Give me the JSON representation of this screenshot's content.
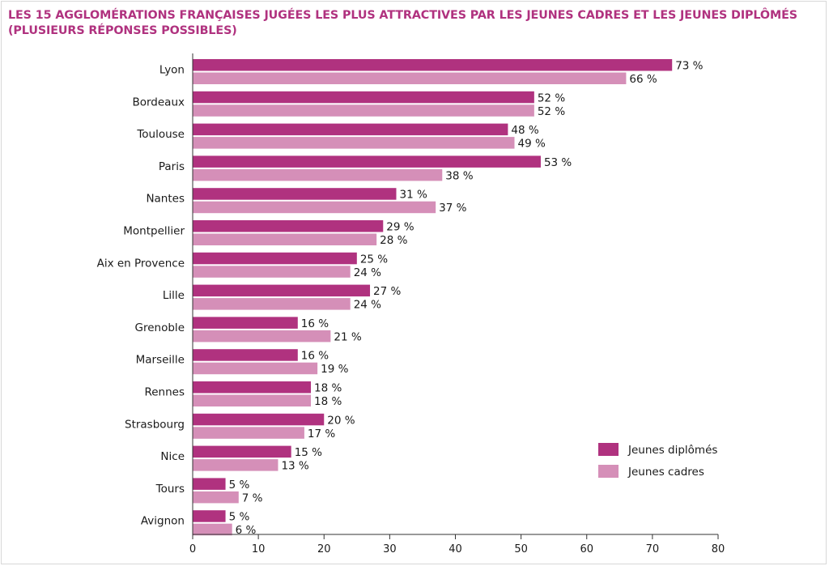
{
  "title_line1": "LES 15 AGGLOMÉRATIONS FRANÇAISES JUGÉES LES PLUS ATTRACTIVES PAR LES JEUNES CADRES ET LES JEUNES DIPLÔMÉS",
  "title_line2": "(PLUSIEURS RÉPONSES POSSIBLES)",
  "colors": {
    "diplomes": "#b0327f",
    "cadres": "#d58fb8",
    "axis": "#333333"
  },
  "chart_data": {
    "type": "bar",
    "orientation": "horizontal",
    "categories": [
      "Lyon",
      "Bordeaux",
      "Toulouse",
      "Paris",
      "Nantes",
      "Montpellier",
      "Aix en Provence",
      "Lille",
      "Grenoble",
      "Marseille",
      "Rennes",
      "Strasbourg",
      "Nice",
      "Tours",
      "Avignon"
    ],
    "series": [
      {
        "name": "Jeunes diplômés",
        "values": [
          73,
          52,
          48,
          53,
          31,
          29,
          25,
          27,
          16,
          16,
          18,
          20,
          15,
          5,
          5
        ]
      },
      {
        "name": "Jeunes cadres",
        "values": [
          66,
          52,
          49,
          38,
          37,
          28,
          24,
          24,
          21,
          19,
          18,
          17,
          13,
          7,
          6
        ]
      }
    ],
    "value_suffix": " %",
    "xlim": [
      0,
      80
    ],
    "xticks": [
      0,
      10,
      20,
      30,
      40,
      50,
      60,
      70,
      80
    ],
    "grid": false,
    "legend_position": "bottom-right"
  }
}
